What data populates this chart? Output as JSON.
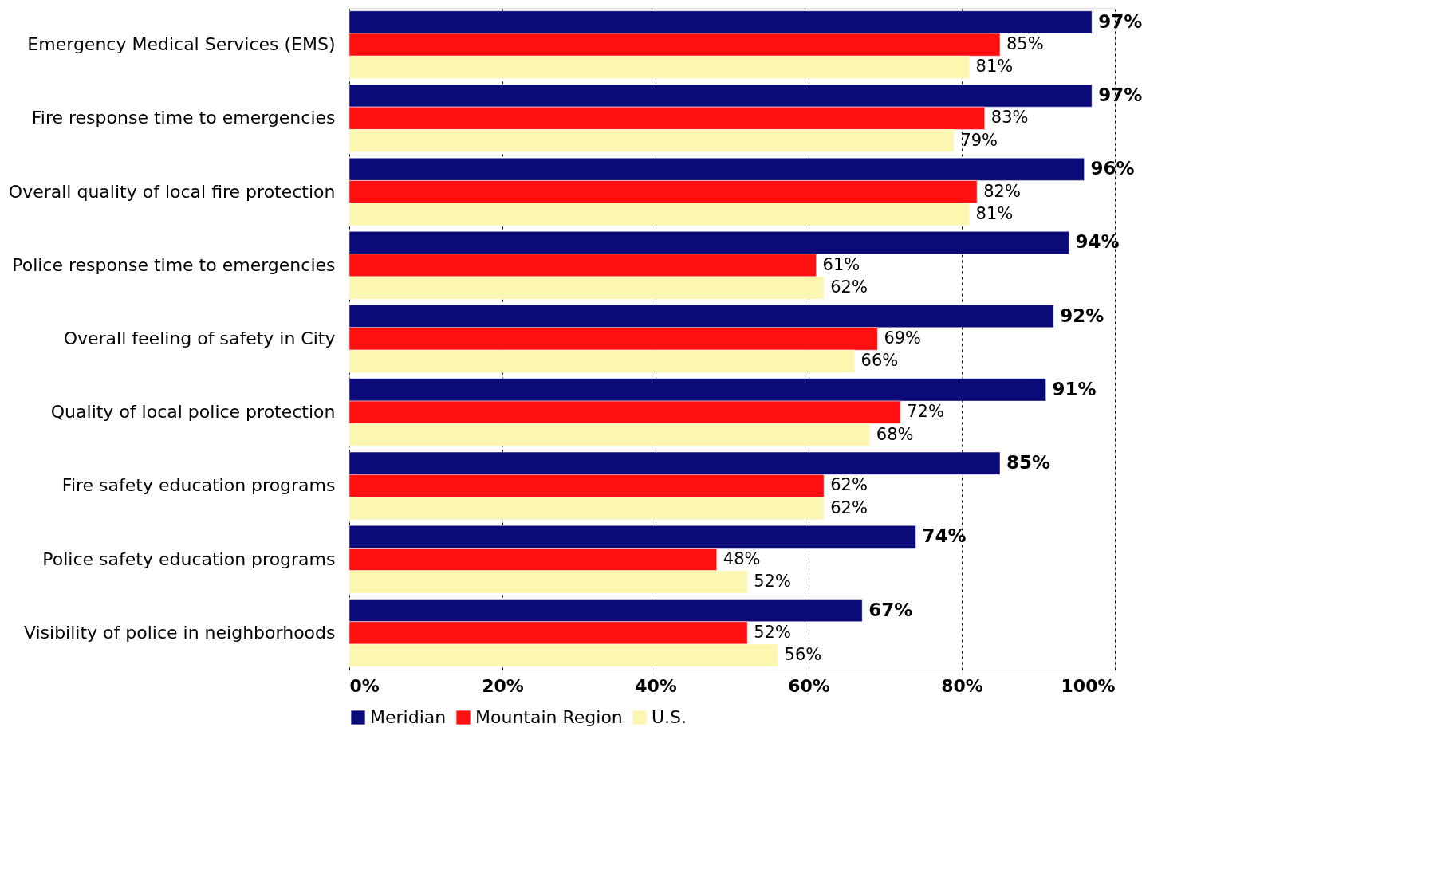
{
  "chart_data": {
    "type": "bar",
    "orientation": "horizontal",
    "categories": [
      "Emergency Medical Services (EMS)",
      "Fire response time to emergencies",
      "Overall quality of local fire protection",
      "Police response time to emergencies",
      "Overall feeling of safety in City",
      "Quality of local police protection",
      "Fire safety education programs",
      "Police safety education programs",
      "Visibility of police in neighborhoods"
    ],
    "series": [
      {
        "name": "Meridian",
        "color": "#0a0a78",
        "values": [
          97,
          97,
          96,
          94,
          92,
          91,
          85,
          74,
          67
        ],
        "value_labels": [
          "97%",
          "97%",
          "96%",
          "94%",
          "92%",
          "91%",
          "85%",
          "74%",
          "67%"
        ]
      },
      {
        "name": "Mountain Region",
        "color": "#ff1010",
        "values": [
          85,
          83,
          82,
          61,
          69,
          72,
          62,
          48,
          52
        ],
        "value_labels": [
          "85%",
          "83%",
          "82%",
          "61%",
          "69%",
          "72%",
          "62%",
          "48%",
          "52%"
        ]
      },
      {
        "name": "U.S.",
        "color": "#fbf7b0",
        "values": [
          81,
          79,
          81,
          62,
          66,
          68,
          62,
          52,
          56
        ],
        "value_labels": [
          "81%",
          "79%",
          "81%",
          "62%",
          "66%",
          "68%",
          "62%",
          "52%",
          "56%"
        ]
      }
    ],
    "xlim": [
      0,
      100
    ],
    "xticks": [
      {
        "value": 0,
        "label": "0%"
      },
      {
        "value": 20,
        "label": "20%"
      },
      {
        "value": 40,
        "label": "40%"
      },
      {
        "value": 60,
        "label": "60%"
      },
      {
        "value": 80,
        "label": "80%"
      },
      {
        "value": 100,
        "label": "100%"
      }
    ],
    "grid": "x",
    "legend": "bottom"
  }
}
